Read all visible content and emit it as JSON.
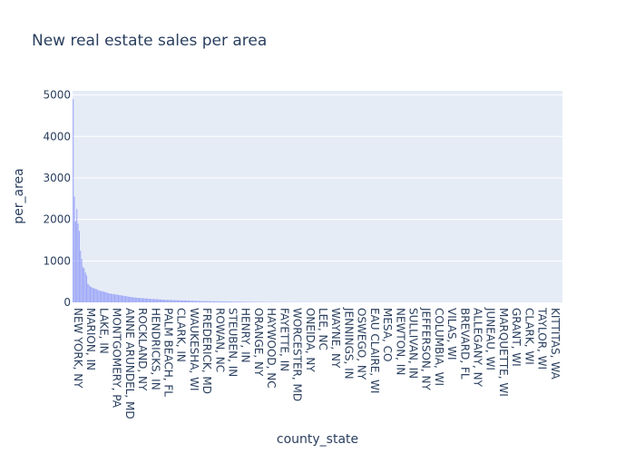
{
  "chart_data": {
    "type": "bar",
    "title": "New real estate sales per area",
    "xlabel": "county_state",
    "ylabel": "per_area",
    "ylim": [
      0,
      5100
    ],
    "y_ticks": [
      0,
      1000,
      2000,
      3000,
      4000,
      5000
    ],
    "grid": true,
    "bar_color": "#636efa",
    "plot_bg": "#e5ecf6",
    "labeled_categories": [
      "NEW YORK, NY",
      "MARION, IN",
      "LAKE, IN",
      "MONTGOMERY, PA",
      "ANNE ARUNDEL, MD",
      "ROCKLAND, NY",
      "HENDRICKS, IN",
      "PALM BEACH, FL",
      "CLARK, IN",
      "WAUKESHA, WI",
      "FREDERICK, MD",
      "ROWAN, NC",
      "STEUBEN, IN",
      "HENRY, IN",
      "ORANGE, NY",
      "HAYWOOD, NC",
      "FAYETTE, IN",
      "WORCESTER, MD",
      "ONEIDA, NY",
      "LEE, NC",
      "WAYNE, NY",
      "JENNINGS, IN",
      "OSWEGO, NY",
      "EAU CLAIRE, WI",
      "MESA, CO",
      "NEWTON, IN",
      "SULLIVAN, IN",
      "JEFFERSON, NY",
      "COLUMBIA, WI",
      "VILAS, WI",
      "BREVARD, FL",
      "ALLEGANY, NY",
      "JUNEAU, WI",
      "MARQUETTE, WI",
      "GRANT, WI",
      "CLARK, WI",
      "TAYLOR, WI",
      "KITTITAS, WA"
    ],
    "values": [
      4900,
      2550,
      1950,
      2250,
      1900,
      1720,
      1250,
      1050,
      850,
      820,
      720,
      650,
      450,
      420,
      380,
      370,
      350,
      340,
      330,
      320,
      300,
      290,
      280,
      270,
      265,
      260,
      250,
      240,
      230,
      220,
      215,
      210,
      205,
      200,
      195,
      190,
      185,
      180,
      175,
      170,
      165,
      160,
      155,
      150,
      145,
      140,
      135,
      130,
      125,
      120,
      118,
      115,
      112,
      110,
      108,
      105,
      102,
      100,
      98,
      95,
      92,
      90,
      88,
      86,
      84,
      82,
      80,
      78,
      76,
      74,
      72,
      70,
      68,
      66,
      64,
      62,
      60,
      59,
      58,
      57,
      56,
      55,
      54,
      53,
      52,
      51,
      50,
      49,
      48,
      47,
      46,
      45,
      44,
      43,
      42,
      41,
      40,
      39,
      38,
      37,
      36,
      35,
      34,
      33,
      32,
      31,
      30,
      30,
      29,
      29,
      28,
      28,
      27,
      27,
      26,
      26,
      25,
      25,
      24,
      24,
      23,
      23,
      22,
      22,
      21,
      21,
      20,
      20,
      19,
      19,
      18,
      18,
      17,
      17,
      16,
      16,
      15,
      15,
      14,
      14,
      13,
      13,
      12,
      12,
      12,
      11,
      11,
      11,
      10,
      10,
      10,
      9,
      9,
      9,
      9,
      8,
      8,
      8,
      8,
      7,
      7,
      7,
      7,
      6,
      6,
      6,
      6,
      6,
      5,
      5,
      5,
      5,
      5,
      4,
      4,
      4,
      4,
      4,
      4,
      3,
      3,
      3,
      3,
      3,
      3,
      3,
      2,
      2,
      2,
      2,
      2,
      2,
      2,
      2,
      2,
      2,
      1,
      1,
      1,
      1,
      1,
      1,
      1,
      1,
      1,
      1,
      1,
      1,
      1,
      1,
      1,
      1,
      1,
      1,
      1,
      1,
      1,
      1,
      1,
      1,
      1,
      1,
      1,
      1,
      1,
      1,
      1,
      1,
      1,
      1,
      1,
      1,
      1,
      1,
      1,
      1,
      1,
      1,
      1,
      1,
      1,
      1,
      1,
      1,
      1,
      1,
      1,
      1,
      1,
      1,
      1,
      1,
      1,
      1,
      1,
      1,
      1,
      1,
      1,
      1,
      1,
      1,
      1,
      1,
      1,
      1,
      1,
      1,
      1,
      1,
      1,
      1,
      1,
      1,
      1,
      1,
      1,
      1,
      1,
      1,
      1,
      1,
      1,
      1,
      1,
      1,
      1,
      1,
      1,
      1,
      1,
      1,
      1,
      1,
      1,
      1,
      1,
      1,
      1,
      1,
      1,
      1,
      1,
      1,
      1,
      1,
      1,
      1,
      1,
      1,
      1,
      1,
      1,
      1,
      1,
      1,
      1,
      1,
      1,
      1,
      1,
      1,
      1,
      1,
      1,
      1,
      1,
      1,
      1,
      1,
      1,
      1,
      1,
      1,
      1,
      1,
      1,
      1,
      1,
      1,
      1,
      1,
      1,
      1,
      1,
      1,
      1,
      1,
      1,
      1,
      1,
      1,
      1,
      1,
      1,
      1,
      1,
      1,
      1,
      1,
      1,
      1,
      1,
      1,
      1,
      1,
      1,
      1,
      1,
      1,
      1,
      1,
      1,
      1,
      1,
      1,
      1,
      1,
      1,
      1,
      1,
      1,
      1,
      1,
      1,
      1,
      1,
      1,
      1,
      1,
      1,
      1,
      1,
      1,
      1,
      1,
      1,
      1,
      1,
      1,
      1
    ]
  }
}
